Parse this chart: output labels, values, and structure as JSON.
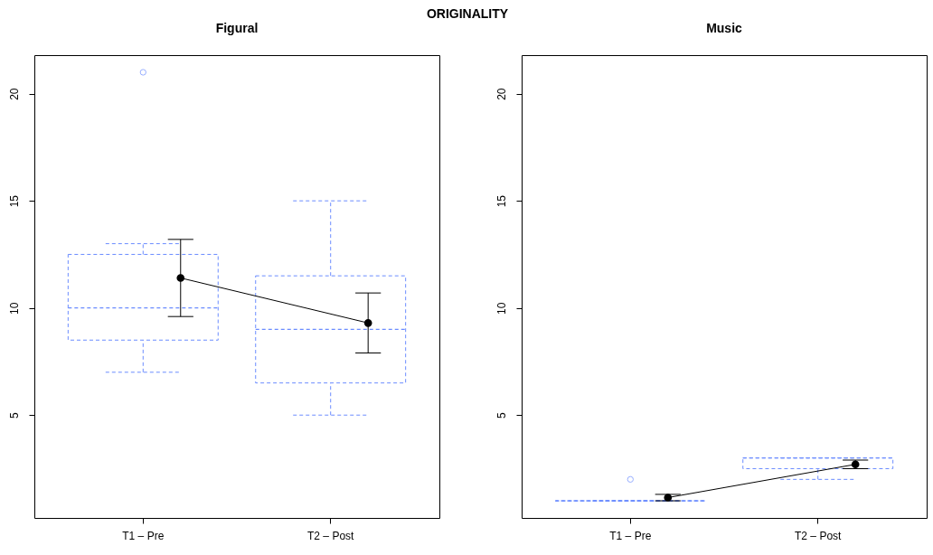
{
  "chart_data": [
    {
      "type": "box",
      "title": "Figural",
      "annotations": [
        "ORIGINALITY"
      ],
      "categories": [
        "T1 – Pre",
        "T2 – Post"
      ],
      "ylim": [
        0.2,
        21.8
      ],
      "yticks": [
        5,
        10,
        15,
        20
      ],
      "grid": false,
      "series": [
        {
          "type": "box",
          "color": "#6b8cff",
          "line_style": "dashed",
          "marker": "circle",
          "boxes": [
            {
              "low": 7,
              "q1": 8.5,
              "median": 10,
              "q3": 12.5,
              "high": 13,
              "outliers": [
                21
              ]
            },
            {
              "low": 5,
              "q1": 6.5,
              "median": 9,
              "q3": 11.5,
              "high": 15
            }
          ]
        },
        {
          "type": "line",
          "color": "#000000",
          "marker": "circle",
          "line_style": "solid",
          "values": [
            11.4,
            9.3
          ],
          "errors": [
            [
              9.6,
              13.2
            ],
            [
              7.9,
              10.7
            ]
          ]
        }
      ]
    },
    {
      "type": "box",
      "title": "Music",
      "categories": [
        "T1 – Pre",
        "T2 – Post"
      ],
      "ylim": [
        0.2,
        21.8
      ],
      "yticks": [
        5,
        10,
        15,
        20
      ],
      "grid": false,
      "series": [
        {
          "type": "box",
          "color": "#6b8cff",
          "line_style": "dashed",
          "marker": "circle",
          "boxes": [
            {
              "low": 1,
              "q1": 1,
              "median": 1,
              "q3": 1,
              "high": 1,
              "outliers": [
                2
              ]
            },
            {
              "low": 2,
              "q1": 2.5,
              "median": 3,
              "q3": 3,
              "high": 3
            }
          ]
        },
        {
          "type": "line",
          "color": "#000000",
          "marker": "circle",
          "line_style": "solid",
          "values": [
            1.15,
            2.7
          ],
          "errors": [
            [
              1.0,
              1.3
            ],
            [
              2.5,
              2.9
            ]
          ]
        }
      ]
    }
  ]
}
